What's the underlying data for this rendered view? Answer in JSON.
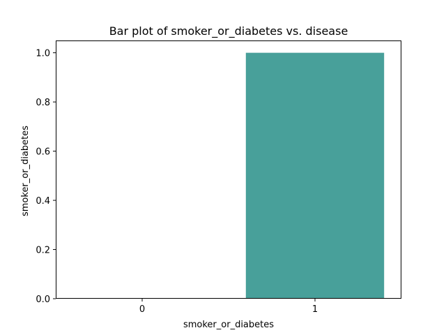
{
  "chart_data": {
    "type": "bar",
    "title": "Bar plot of smoker_or_diabetes vs. disease",
    "xlabel": "smoker_or_diabetes",
    "ylabel": "smoker_or_diabetes",
    "categories": [
      "0",
      "1"
    ],
    "values": [
      0.0,
      1.0
    ],
    "ylim": [
      0,
      1.05
    ],
    "yticks": [
      "0.0",
      "0.2",
      "0.4",
      "0.6",
      "0.8",
      "1.0"
    ],
    "ytick_values": [
      0.0,
      0.2,
      0.4,
      0.6,
      0.8,
      1.0
    ],
    "bar_color": "#48a09a",
    "grid": false,
    "legend": "none"
  }
}
